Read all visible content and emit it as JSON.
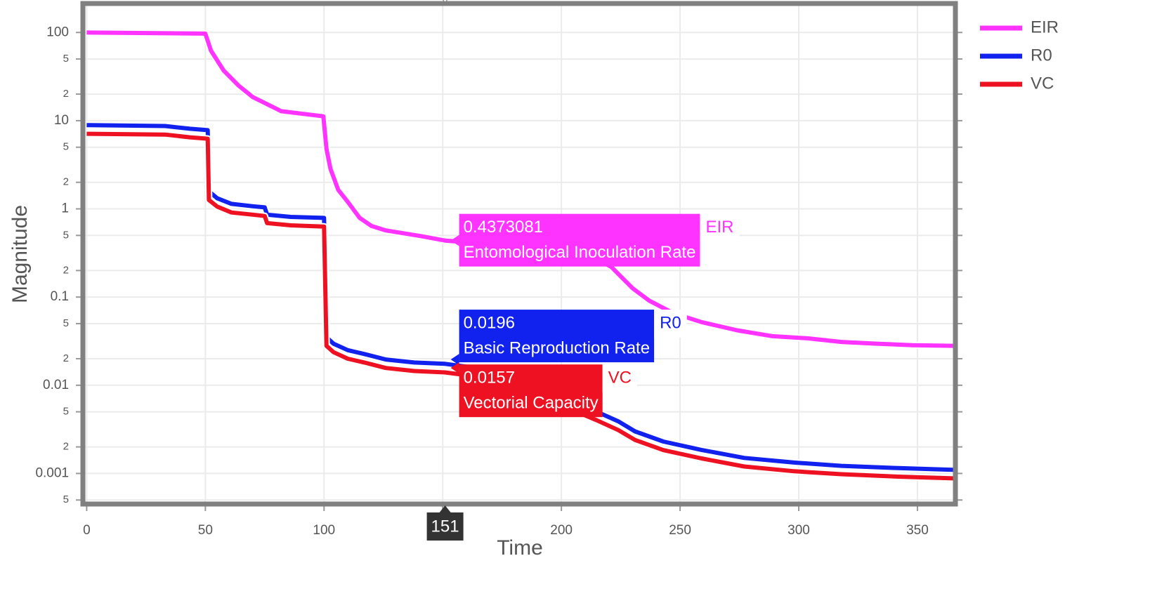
{
  "chart_data": {
    "type": "line",
    "x_title": "Time",
    "y_title": "Magnitude",
    "log_y": true,
    "grid": true,
    "legend": "right",
    "xlim": [
      -1.6,
      366
    ],
    "ylim": [
      0.00045,
      213
    ],
    "xticks": [
      0,
      50,
      100,
      150,
      200,
      250,
      300,
      350
    ],
    "yticks": [
      {
        "value": 0.0005,
        "label": "5"
      },
      0.001,
      {
        "value": 0.002,
        "label": "2"
      },
      {
        "value": 0.005,
        "label": "5"
      },
      0.01,
      {
        "value": 0.02,
        "label": "2"
      },
      {
        "value": 0.05,
        "label": "5"
      },
      0.1,
      {
        "value": 0.2,
        "label": "2"
      },
      {
        "value": 0.5,
        "label": "5"
      },
      1,
      {
        "value": 2,
        "label": "2"
      },
      {
        "value": 5,
        "label": "5"
      },
      10,
      {
        "value": 20,
        "label": "2"
      },
      {
        "value": 50,
        "label": "5"
      },
      100
    ],
    "hover": {
      "x": 151,
      "index": 16
    },
    "series": [
      {
        "name": "EIR",
        "description": "Entomological Inoculation Rate",
        "color": "#ff33ff",
        "x": [
          0,
          50,
          52.4,
          57.7,
          64,
          70,
          82,
          99.7,
          101,
          102.7,
          106,
          110,
          115,
          120,
          126,
          141,
          151,
          170,
          190,
          210,
          221,
          230,
          237,
          247,
          259,
          274,
          289,
          304,
          318,
          333,
          348,
          365
        ],
        "values": [
          100,
          97,
          62,
          37,
          25,
          18.5,
          12.8,
          11.2,
          4.8,
          2.85,
          1.64,
          1.2,
          0.79,
          0.64,
          0.57,
          0.49,
          0.4373081,
          0.4,
          0.36,
          0.32,
          0.22,
          0.126,
          0.091,
          0.066,
          0.052,
          0.042,
          0.036,
          0.034,
          0.031,
          0.0296,
          0.0285,
          0.028
        ]
      },
      {
        "name": "R0",
        "description": "Basic Reproduction Rate",
        "color": "#1122ee",
        "x": [
          0,
          33,
          43.5,
          51,
          51.5,
          55,
          61,
          70,
          75,
          76,
          86,
          100,
          101,
          104,
          110,
          117,
          126,
          138,
          151,
          170,
          190,
          205,
          215,
          224,
          231,
          243,
          259,
          277,
          298,
          318,
          342,
          365
        ],
        "values": [
          8.9,
          8.7,
          8.1,
          7.8,
          1.58,
          1.32,
          1.14,
          1.07,
          1.04,
          0.86,
          0.81,
          0.79,
          0.035,
          0.0296,
          0.025,
          0.0226,
          0.0196,
          0.0181,
          0.01748524,
          0.015,
          0.01,
          0.0065,
          0.005,
          0.0039,
          0.003,
          0.0023,
          0.00185,
          0.0015,
          0.00133,
          0.00122,
          0.00115,
          0.0011
        ]
      },
      {
        "name": "VC",
        "description": "Vectorial Capacity",
        "color": "#ee1122",
        "x": [
          0,
          33,
          43.5,
          51,
          51.5,
          55,
          61,
          70,
          75,
          76,
          86,
          100,
          101,
          104,
          110,
          117,
          126,
          138,
          151,
          170,
          190,
          205,
          215,
          224,
          231,
          243,
          259,
          277,
          298,
          318,
          342,
          365
        ],
        "values": [
          7.1,
          6.96,
          6.48,
          6.24,
          1.26,
          1.06,
          0.91,
          0.86,
          0.83,
          0.69,
          0.65,
          0.63,
          0.028,
          0.0237,
          0.02,
          0.0181,
          0.0157,
          0.0145,
          0.01398819,
          0.012,
          0.008,
          0.0052,
          0.004,
          0.0031,
          0.0024,
          0.00184,
          0.00148,
          0.0012,
          0.00106,
          0.00098,
          0.00092,
          0.00088
        ]
      }
    ]
  }
}
